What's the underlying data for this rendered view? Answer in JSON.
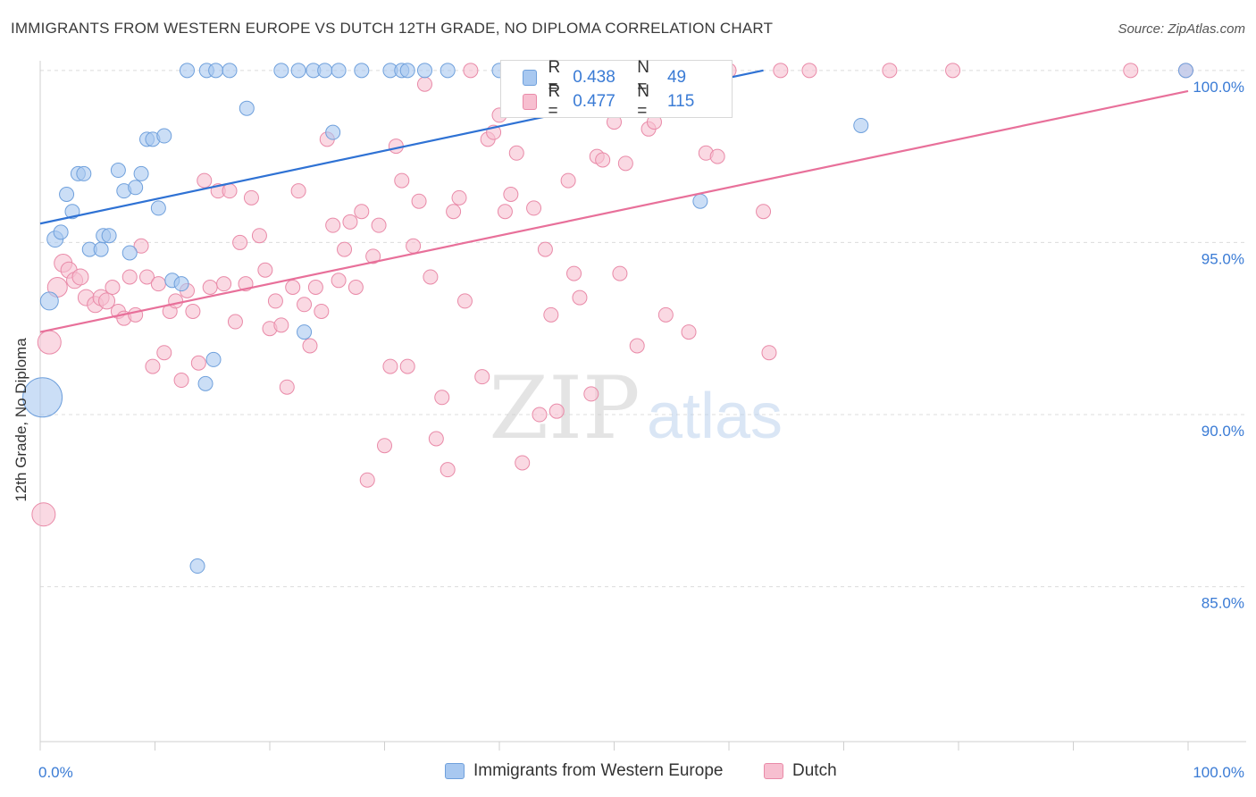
{
  "header": {
    "title": "IMMIGRANTS FROM WESTERN EUROPE VS DUTCH 12TH GRADE, NO DIPLOMA CORRELATION CHART",
    "source": "Source: ZipAtlas.com"
  },
  "watermark": {
    "zip": "ZIP",
    "atlas": "atlas"
  },
  "colors": {
    "blue_fill": "#a8c8f0",
    "blue_stroke": "#6fa0dc",
    "blue_line": "#2f72d4",
    "pink_fill": "#f7bfd0",
    "pink_stroke": "#e98aa8",
    "pink_line": "#e8709a",
    "tick_label": "#3a7bd5",
    "grid": "#dcdcdc"
  },
  "legend": {
    "rows": [
      {
        "r_label": "R =",
        "r_value": "0.438",
        "n_label": "N =",
        "n_value": "49",
        "series": "blue"
      },
      {
        "r_label": "R =",
        "r_value": "0.477",
        "n_label": "N =",
        "n_value": "115",
        "series": "pink"
      }
    ]
  },
  "chart_data": {
    "type": "scatter",
    "title": "IMMIGRANTS FROM WESTERN EUROPE VS DUTCH 12TH GRADE, NO DIPLOMA CORRELATION CHART",
    "xlabel": "",
    "ylabel": "12th Grade, No Diploma",
    "xlim": [
      0,
      100
    ],
    "ylim": [
      80.5,
      100.8
    ],
    "x_tick_labels": [
      "0.0%",
      "100.0%"
    ],
    "y_ticks": [
      85,
      90,
      95,
      100
    ],
    "y_tick_labels": [
      "85.0%",
      "90.0%",
      "95.0%",
      "100.0%"
    ],
    "grid": true,
    "legend_position": "top-center",
    "series": [
      {
        "name": "Immigrants from Western Europe",
        "color": "blue",
        "trend": {
          "x": [
            0,
            63
          ],
          "y": [
            95.55,
            100.0
          ]
        },
        "points": [
          {
            "x": 0.2,
            "y": 90.5,
            "s": 22
          },
          {
            "x": 0.8,
            "y": 93.3,
            "s": 10
          },
          {
            "x": 1.3,
            "y": 95.1,
            "s": 9
          },
          {
            "x": 1.8,
            "y": 95.3,
            "s": 8
          },
          {
            "x": 2.3,
            "y": 96.4,
            "s": 8
          },
          {
            "x": 2.8,
            "y": 95.9,
            "s": 8
          },
          {
            "x": 3.3,
            "y": 97.0,
            "s": 8
          },
          {
            "x": 3.8,
            "y": 97.0,
            "s": 8
          },
          {
            "x": 4.3,
            "y": 94.8,
            "s": 8
          },
          {
            "x": 5.3,
            "y": 94.8,
            "s": 8
          },
          {
            "x": 5.5,
            "y": 95.2,
            "s": 8
          },
          {
            "x": 6.0,
            "y": 95.2,
            "s": 8
          },
          {
            "x": 6.8,
            "y": 97.1,
            "s": 8
          },
          {
            "x": 7.3,
            "y": 96.5,
            "s": 8
          },
          {
            "x": 7.8,
            "y": 94.7,
            "s": 8
          },
          {
            "x": 8.3,
            "y": 96.6,
            "s": 8
          },
          {
            "x": 8.8,
            "y": 97.0,
            "s": 8
          },
          {
            "x": 9.3,
            "y": 98.0,
            "s": 8
          },
          {
            "x": 9.8,
            "y": 98.0,
            "s": 8
          },
          {
            "x": 10.3,
            "y": 96.0,
            "s": 8
          },
          {
            "x": 10.8,
            "y": 98.1,
            "s": 8
          },
          {
            "x": 11.5,
            "y": 93.9,
            "s": 8
          },
          {
            "x": 12.3,
            "y": 93.8,
            "s": 8
          },
          {
            "x": 12.8,
            "y": 100.0,
            "s": 8
          },
          {
            "x": 14.5,
            "y": 100.0,
            "s": 8
          },
          {
            "x": 15.3,
            "y": 100.0,
            "s": 8
          },
          {
            "x": 16.5,
            "y": 100.0,
            "s": 8
          },
          {
            "x": 13.7,
            "y": 85.6,
            "s": 8
          },
          {
            "x": 14.4,
            "y": 90.9,
            "s": 8
          },
          {
            "x": 15.1,
            "y": 91.6,
            "s": 8
          },
          {
            "x": 18.0,
            "y": 98.9,
            "s": 8
          },
          {
            "x": 21.0,
            "y": 100.0,
            "s": 8
          },
          {
            "x": 22.5,
            "y": 100.0,
            "s": 8
          },
          {
            "x": 23.0,
            "y": 92.4,
            "s": 8
          },
          {
            "x": 23.8,
            "y": 100.0,
            "s": 8
          },
          {
            "x": 24.8,
            "y": 100.0,
            "s": 8
          },
          {
            "x": 25.5,
            "y": 98.2,
            "s": 8
          },
          {
            "x": 26.0,
            "y": 100.0,
            "s": 8
          },
          {
            "x": 28.0,
            "y": 100.0,
            "s": 8
          },
          {
            "x": 30.5,
            "y": 100.0,
            "s": 8
          },
          {
            "x": 31.5,
            "y": 100.0,
            "s": 8
          },
          {
            "x": 32.0,
            "y": 100.0,
            "s": 8
          },
          {
            "x": 33.5,
            "y": 100.0,
            "s": 8
          },
          {
            "x": 35.5,
            "y": 100.0,
            "s": 8
          },
          {
            "x": 40.0,
            "y": 100.0,
            "s": 8
          },
          {
            "x": 50.0,
            "y": 100.0,
            "s": 8
          },
          {
            "x": 57.5,
            "y": 96.2,
            "s": 8
          },
          {
            "x": 71.5,
            "y": 98.4,
            "s": 8
          },
          {
            "x": 99.8,
            "y": 100.0,
            "s": 8
          }
        ]
      },
      {
        "name": "Dutch",
        "color": "pink",
        "trend": {
          "x": [
            0,
            100
          ],
          "y": [
            92.4,
            99.4
          ]
        },
        "points": [
          {
            "x": 0.3,
            "y": 87.1,
            "s": 13
          },
          {
            "x": 0.8,
            "y": 92.1,
            "s": 13
          },
          {
            "x": 1.5,
            "y": 93.7,
            "s": 11
          },
          {
            "x": 2.0,
            "y": 94.4,
            "s": 10
          },
          {
            "x": 2.5,
            "y": 94.2,
            "s": 9
          },
          {
            "x": 3.0,
            "y": 93.9,
            "s": 9
          },
          {
            "x": 3.5,
            "y": 94.0,
            "s": 9
          },
          {
            "x": 4.0,
            "y": 93.4,
            "s": 9
          },
          {
            "x": 4.8,
            "y": 93.2,
            "s": 9
          },
          {
            "x": 5.3,
            "y": 93.4,
            "s": 9
          },
          {
            "x": 5.8,
            "y": 93.3,
            "s": 9
          },
          {
            "x": 6.3,
            "y": 93.7,
            "s": 8
          },
          {
            "x": 6.8,
            "y": 93.0,
            "s": 8
          },
          {
            "x": 7.3,
            "y": 92.8,
            "s": 8
          },
          {
            "x": 7.8,
            "y": 94.0,
            "s": 8
          },
          {
            "x": 8.3,
            "y": 92.9,
            "s": 8
          },
          {
            "x": 8.8,
            "y": 94.9,
            "s": 8
          },
          {
            "x": 9.3,
            "y": 94.0,
            "s": 8
          },
          {
            "x": 9.8,
            "y": 91.4,
            "s": 8
          },
          {
            "x": 10.3,
            "y": 93.8,
            "s": 8
          },
          {
            "x": 10.8,
            "y": 91.8,
            "s": 8
          },
          {
            "x": 11.3,
            "y": 93.0,
            "s": 8
          },
          {
            "x": 11.8,
            "y": 93.3,
            "s": 8
          },
          {
            "x": 12.3,
            "y": 91.0,
            "s": 8
          },
          {
            "x": 12.8,
            "y": 93.6,
            "s": 8
          },
          {
            "x": 13.3,
            "y": 93.0,
            "s": 8
          },
          {
            "x": 13.8,
            "y": 91.5,
            "s": 8
          },
          {
            "x": 14.3,
            "y": 96.8,
            "s": 8
          },
          {
            "x": 14.8,
            "y": 93.7,
            "s": 8
          },
          {
            "x": 15.5,
            "y": 96.5,
            "s": 8
          },
          {
            "x": 16.0,
            "y": 93.8,
            "s": 8
          },
          {
            "x": 16.5,
            "y": 96.5,
            "s": 8
          },
          {
            "x": 17.0,
            "y": 92.7,
            "s": 8
          },
          {
            "x": 17.4,
            "y": 95.0,
            "s": 8
          },
          {
            "x": 17.9,
            "y": 93.8,
            "s": 8
          },
          {
            "x": 18.4,
            "y": 96.3,
            "s": 8
          },
          {
            "x": 19.1,
            "y": 95.2,
            "s": 8
          },
          {
            "x": 19.6,
            "y": 94.2,
            "s": 8
          },
          {
            "x": 20.0,
            "y": 92.5,
            "s": 8
          },
          {
            "x": 20.5,
            "y": 93.3,
            "s": 8
          },
          {
            "x": 21.0,
            "y": 92.6,
            "s": 8
          },
          {
            "x": 21.5,
            "y": 90.8,
            "s": 8
          },
          {
            "x": 22.0,
            "y": 93.7,
            "s": 8
          },
          {
            "x": 22.5,
            "y": 96.5,
            "s": 8
          },
          {
            "x": 23.0,
            "y": 93.2,
            "s": 8
          },
          {
            "x": 23.5,
            "y": 92.0,
            "s": 8
          },
          {
            "x": 24.0,
            "y": 93.7,
            "s": 8
          },
          {
            "x": 24.5,
            "y": 93.0,
            "s": 8
          },
          {
            "x": 25.0,
            "y": 98.0,
            "s": 8
          },
          {
            "x": 25.5,
            "y": 95.5,
            "s": 8
          },
          {
            "x": 26.0,
            "y": 93.9,
            "s": 8
          },
          {
            "x": 26.5,
            "y": 94.8,
            "s": 8
          },
          {
            "x": 27.0,
            "y": 95.6,
            "s": 8
          },
          {
            "x": 27.5,
            "y": 93.7,
            "s": 8
          },
          {
            "x": 28.0,
            "y": 95.9,
            "s": 8
          },
          {
            "x": 28.5,
            "y": 88.1,
            "s": 8
          },
          {
            "x": 29.0,
            "y": 94.6,
            "s": 8
          },
          {
            "x": 29.5,
            "y": 95.5,
            "s": 8
          },
          {
            "x": 30.0,
            "y": 89.1,
            "s": 8
          },
          {
            "x": 30.5,
            "y": 91.4,
            "s": 8
          },
          {
            "x": 31.0,
            "y": 97.8,
            "s": 8
          },
          {
            "x": 31.5,
            "y": 96.8,
            "s": 8
          },
          {
            "x": 32.0,
            "y": 91.4,
            "s": 8
          },
          {
            "x": 32.5,
            "y": 94.9,
            "s": 8
          },
          {
            "x": 33.0,
            "y": 96.2,
            "s": 8
          },
          {
            "x": 33.5,
            "y": 99.6,
            "s": 8
          },
          {
            "x": 34.0,
            "y": 94.0,
            "s": 8
          },
          {
            "x": 34.5,
            "y": 89.3,
            "s": 8
          },
          {
            "x": 35.0,
            "y": 90.5,
            "s": 8
          },
          {
            "x": 35.5,
            "y": 88.4,
            "s": 8
          },
          {
            "x": 36.0,
            "y": 95.9,
            "s": 8
          },
          {
            "x": 36.5,
            "y": 96.3,
            "s": 8
          },
          {
            "x": 37.0,
            "y": 93.3,
            "s": 8
          },
          {
            "x": 37.5,
            "y": 100.0,
            "s": 8
          },
          {
            "x": 38.5,
            "y": 91.1,
            "s": 8
          },
          {
            "x": 39.0,
            "y": 98.0,
            "s": 8
          },
          {
            "x": 39.5,
            "y": 98.2,
            "s": 8
          },
          {
            "x": 40.0,
            "y": 98.7,
            "s": 8
          },
          {
            "x": 40.5,
            "y": 95.9,
            "s": 8
          },
          {
            "x": 41.0,
            "y": 96.4,
            "s": 8
          },
          {
            "x": 41.5,
            "y": 97.6,
            "s": 8
          },
          {
            "x": 42.0,
            "y": 88.6,
            "s": 8
          },
          {
            "x": 43.0,
            "y": 96.0,
            "s": 8
          },
          {
            "x": 43.5,
            "y": 90.0,
            "s": 8
          },
          {
            "x": 44.0,
            "y": 94.8,
            "s": 8
          },
          {
            "x": 44.5,
            "y": 92.9,
            "s": 8
          },
          {
            "x": 45.0,
            "y": 90.1,
            "s": 8
          },
          {
            "x": 46.0,
            "y": 96.8,
            "s": 8
          },
          {
            "x": 46.5,
            "y": 94.1,
            "s": 8
          },
          {
            "x": 47.0,
            "y": 93.4,
            "s": 8
          },
          {
            "x": 48.0,
            "y": 90.6,
            "s": 8
          },
          {
            "x": 48.5,
            "y": 97.5,
            "s": 8
          },
          {
            "x": 49.0,
            "y": 97.4,
            "s": 8
          },
          {
            "x": 50.0,
            "y": 98.5,
            "s": 8
          },
          {
            "x": 50.5,
            "y": 94.1,
            "s": 8
          },
          {
            "x": 51.0,
            "y": 97.3,
            "s": 8
          },
          {
            "x": 52.0,
            "y": 92.0,
            "s": 8
          },
          {
            "x": 53.0,
            "y": 98.3,
            "s": 8
          },
          {
            "x": 53.5,
            "y": 98.5,
            "s": 8
          },
          {
            "x": 54.5,
            "y": 92.9,
            "s": 8
          },
          {
            "x": 56.5,
            "y": 92.4,
            "s": 8
          },
          {
            "x": 58.0,
            "y": 97.6,
            "s": 8
          },
          {
            "x": 59.0,
            "y": 97.5,
            "s": 8
          },
          {
            "x": 60.0,
            "y": 100.0,
            "s": 8
          },
          {
            "x": 63.0,
            "y": 95.9,
            "s": 8
          },
          {
            "x": 63.5,
            "y": 91.8,
            "s": 8
          },
          {
            "x": 64.5,
            "y": 100.0,
            "s": 8
          },
          {
            "x": 67.0,
            "y": 100.0,
            "s": 8
          },
          {
            "x": 74.0,
            "y": 100.0,
            "s": 8
          },
          {
            "x": 79.5,
            "y": 100.0,
            "s": 8
          },
          {
            "x": 95.0,
            "y": 100.0,
            "s": 8
          },
          {
            "x": 99.8,
            "y": 100.0,
            "s": 8
          }
        ]
      }
    ]
  }
}
